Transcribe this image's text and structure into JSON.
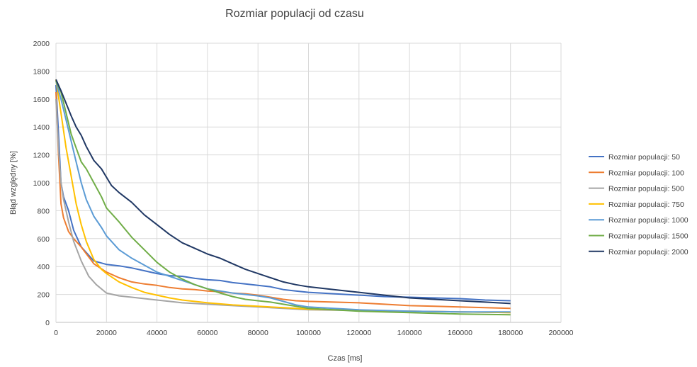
{
  "chart_data": {
    "type": "line",
    "title": "Rozmiar populacji od czasu",
    "xlabel": "Czas [ms]",
    "ylabel": "Błąd względny [%]",
    "xlim": [
      0,
      200000
    ],
    "ylim": [
      0,
      2000
    ],
    "x_ticks": [
      "0",
      "20000",
      "40000",
      "60000",
      "80000",
      "100000",
      "120000",
      "140000",
      "160000",
      "180000",
      "200000"
    ],
    "y_ticks": [
      "0",
      "200",
      "400",
      "600",
      "800",
      "1000",
      "1200",
      "1400",
      "1600",
      "1800",
      "2000"
    ],
    "grid": true,
    "legend_position": "right",
    "series": [
      {
        "name": "Rozmiar populacji: 50",
        "color": "#4472c4",
        "points": [
          [
            0,
            1700
          ],
          [
            1000,
            1350
          ],
          [
            2000,
            1000
          ],
          [
            3000,
            900
          ],
          [
            5000,
            800
          ],
          [
            7000,
            660
          ],
          [
            10000,
            540
          ],
          [
            15000,
            440
          ],
          [
            20000,
            415
          ],
          [
            25000,
            405
          ],
          [
            30000,
            390
          ],
          [
            35000,
            370
          ],
          [
            40000,
            350
          ],
          [
            45000,
            335
          ],
          [
            50000,
            330
          ],
          [
            55000,
            315
          ],
          [
            60000,
            305
          ],
          [
            65000,
            300
          ],
          [
            70000,
            285
          ],
          [
            75000,
            275
          ],
          [
            80000,
            265
          ],
          [
            85000,
            255
          ],
          [
            90000,
            235
          ],
          [
            95000,
            225
          ],
          [
            100000,
            215
          ],
          [
            110000,
            205
          ],
          [
            120000,
            195
          ],
          [
            130000,
            185
          ],
          [
            140000,
            180
          ],
          [
            150000,
            175
          ],
          [
            160000,
            170
          ],
          [
            170000,
            160
          ],
          [
            180000,
            155
          ]
        ]
      },
      {
        "name": "Rozmiar populacji: 100",
        "color": "#ed7d31",
        "points": [
          [
            0,
            1650
          ],
          [
            1000,
            1200
          ],
          [
            2000,
            850
          ],
          [
            3000,
            750
          ],
          [
            5000,
            650
          ],
          [
            7000,
            600
          ],
          [
            10000,
            540
          ],
          [
            15000,
            420
          ],
          [
            20000,
            360
          ],
          [
            25000,
            320
          ],
          [
            30000,
            290
          ],
          [
            35000,
            275
          ],
          [
            40000,
            265
          ],
          [
            45000,
            250
          ],
          [
            50000,
            240
          ],
          [
            55000,
            235
          ],
          [
            60000,
            225
          ],
          [
            65000,
            220
          ],
          [
            70000,
            210
          ],
          [
            75000,
            205
          ],
          [
            80000,
            195
          ],
          [
            85000,
            180
          ],
          [
            90000,
            165
          ],
          [
            95000,
            155
          ],
          [
            100000,
            150
          ],
          [
            110000,
            145
          ],
          [
            120000,
            140
          ],
          [
            130000,
            130
          ],
          [
            140000,
            120
          ],
          [
            150000,
            115
          ],
          [
            160000,
            110
          ],
          [
            170000,
            105
          ],
          [
            180000,
            100
          ]
        ]
      },
      {
        "name": "Rozmiar populacji: 500",
        "color": "#a5a5a5",
        "points": [
          [
            0,
            1600
          ],
          [
            1000,
            1250
          ],
          [
            2000,
            1000
          ],
          [
            3000,
            880
          ],
          [
            5000,
            720
          ],
          [
            7000,
            580
          ],
          [
            10000,
            440
          ],
          [
            13000,
            330
          ],
          [
            16000,
            270
          ],
          [
            20000,
            210
          ],
          [
            25000,
            190
          ],
          [
            30000,
            180
          ],
          [
            35000,
            170
          ],
          [
            40000,
            160
          ],
          [
            45000,
            150
          ],
          [
            50000,
            140
          ],
          [
            60000,
            130
          ],
          [
            70000,
            120
          ],
          [
            80000,
            110
          ],
          [
            90000,
            100
          ],
          [
            100000,
            90
          ],
          [
            120000,
            85
          ],
          [
            140000,
            80
          ],
          [
            160000,
            75
          ],
          [
            180000,
            70
          ]
        ]
      },
      {
        "name": "Rozmiar populacji: 750",
        "color": "#ffc000",
        "points": [
          [
            0,
            1740
          ],
          [
            2000,
            1500
          ],
          [
            4000,
            1250
          ],
          [
            6000,
            1050
          ],
          [
            8000,
            850
          ],
          [
            10000,
            700
          ],
          [
            12000,
            580
          ],
          [
            15000,
            450
          ],
          [
            18000,
            380
          ],
          [
            20000,
            350
          ],
          [
            25000,
            290
          ],
          [
            30000,
            250
          ],
          [
            35000,
            215
          ],
          [
            40000,
            195
          ],
          [
            45000,
            175
          ],
          [
            50000,
            160
          ],
          [
            60000,
            140
          ],
          [
            70000,
            125
          ],
          [
            80000,
            115
          ],
          [
            90000,
            105
          ],
          [
            100000,
            95
          ],
          [
            110000,
            90
          ],
          [
            120000,
            85
          ],
          [
            140000,
            80
          ],
          [
            160000,
            75
          ],
          [
            180000,
            70
          ]
        ]
      },
      {
        "name": "Rozmiar populacji: 1000",
        "color": "#5b9bd5",
        "points": [
          [
            0,
            1730
          ],
          [
            2000,
            1600
          ],
          [
            4000,
            1450
          ],
          [
            6000,
            1300
          ],
          [
            8000,
            1150
          ],
          [
            10000,
            1000
          ],
          [
            12000,
            880
          ],
          [
            15000,
            760
          ],
          [
            18000,
            680
          ],
          [
            20000,
            620
          ],
          [
            25000,
            520
          ],
          [
            30000,
            460
          ],
          [
            35000,
            410
          ],
          [
            40000,
            360
          ],
          [
            45000,
            330
          ],
          [
            50000,
            300
          ],
          [
            55000,
            270
          ],
          [
            60000,
            240
          ],
          [
            65000,
            225
          ],
          [
            70000,
            210
          ],
          [
            75000,
            200
          ],
          [
            80000,
            190
          ],
          [
            85000,
            175
          ],
          [
            90000,
            150
          ],
          [
            95000,
            125
          ],
          [
            100000,
            110
          ],
          [
            110000,
            100
          ],
          [
            120000,
            90
          ],
          [
            130000,
            85
          ],
          [
            140000,
            80
          ],
          [
            160000,
            75
          ],
          [
            180000,
            75
          ]
        ]
      },
      {
        "name": "Rozmiar populacji: 1500",
        "color": "#70ad47",
        "points": [
          [
            0,
            1730
          ],
          [
            2000,
            1650
          ],
          [
            4000,
            1500
          ],
          [
            6000,
            1350
          ],
          [
            8000,
            1250
          ],
          [
            10000,
            1150
          ],
          [
            12000,
            1100
          ],
          [
            15000,
            1000
          ],
          [
            18000,
            900
          ],
          [
            20000,
            820
          ],
          [
            25000,
            720
          ],
          [
            30000,
            610
          ],
          [
            35000,
            520
          ],
          [
            40000,
            430
          ],
          [
            45000,
            360
          ],
          [
            50000,
            310
          ],
          [
            55000,
            270
          ],
          [
            60000,
            240
          ],
          [
            65000,
            210
          ],
          [
            70000,
            185
          ],
          [
            75000,
            165
          ],
          [
            80000,
            155
          ],
          [
            85000,
            145
          ],
          [
            90000,
            130
          ],
          [
            95000,
            115
          ],
          [
            100000,
            100
          ],
          [
            110000,
            90
          ],
          [
            120000,
            80
          ],
          [
            130000,
            75
          ],
          [
            140000,
            70
          ],
          [
            160000,
            60
          ],
          [
            180000,
            55
          ]
        ]
      },
      {
        "name": "Rozmiar populacji: 2000",
        "color": "#203864",
        "points": [
          [
            0,
            1740
          ],
          [
            2000,
            1660
          ],
          [
            4000,
            1570
          ],
          [
            6000,
            1480
          ],
          [
            8000,
            1400
          ],
          [
            10000,
            1340
          ],
          [
            12000,
            1260
          ],
          [
            15000,
            1160
          ],
          [
            18000,
            1100
          ],
          [
            20000,
            1040
          ],
          [
            22000,
            980
          ],
          [
            25000,
            930
          ],
          [
            30000,
            860
          ],
          [
            35000,
            770
          ],
          [
            40000,
            700
          ],
          [
            45000,
            630
          ],
          [
            50000,
            570
          ],
          [
            55000,
            530
          ],
          [
            60000,
            490
          ],
          [
            65000,
            460
          ],
          [
            70000,
            420
          ],
          [
            75000,
            380
          ],
          [
            80000,
            350
          ],
          [
            85000,
            320
          ],
          [
            90000,
            290
          ],
          [
            95000,
            270
          ],
          [
            100000,
            255
          ],
          [
            110000,
            235
          ],
          [
            120000,
            215
          ],
          [
            130000,
            195
          ],
          [
            140000,
            175
          ],
          [
            150000,
            165
          ],
          [
            160000,
            155
          ],
          [
            170000,
            145
          ],
          [
            180000,
            135
          ]
        ]
      }
    ]
  }
}
